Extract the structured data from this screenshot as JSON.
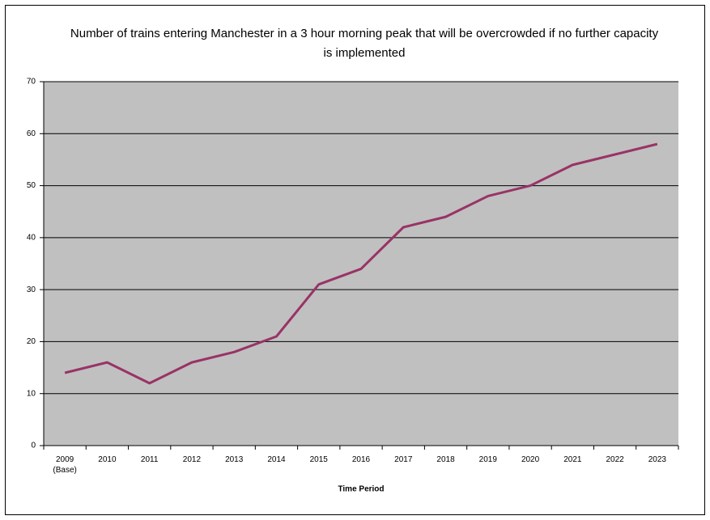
{
  "chart_data": {
    "type": "line",
    "title": "Number of trains entering Manchester in a 3 hour morning peak that will be overcrowded if no further capacity is implemented",
    "x_label": "Time Period",
    "categories": [
      "2009 (Base)",
      "2010",
      "2011",
      "2012",
      "2013",
      "2014",
      "2015",
      "2016",
      "2017",
      "2018",
      "2019",
      "2020",
      "2021",
      "2022",
      "2023"
    ],
    "values": [
      14,
      16,
      12,
      16,
      18,
      21,
      31,
      34,
      42,
      44,
      48,
      50,
      54,
      56,
      58
    ],
    "color": "#993366",
    "plot_background": "#c0c0c0",
    "ylim": [
      0,
      70
    ],
    "yticks": [
      0,
      10,
      20,
      30,
      40,
      50,
      60,
      70
    ],
    "grid": true
  }
}
